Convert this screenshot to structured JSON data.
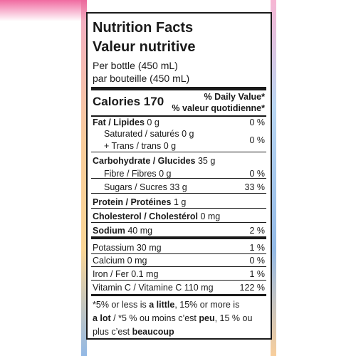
{
  "header": {
    "title_en": "Nutrition Facts",
    "title_fr": "Valeur nutritive",
    "serving_en": "Per bottle (450 mL)",
    "serving_fr": "par bouteille (450 mL)"
  },
  "calories": {
    "label": "Calories 170",
    "dv_en": "% Daily Value*",
    "dv_fr": "% valeur quotidienne*"
  },
  "rows": [
    {
      "name": "Fat / Lipides",
      "amount": "0 g",
      "dv": "0 %"
    },
    {
      "name": "Saturated / saturés",
      "amount": "0 g"
    },
    {
      "name": "+ Trans / trans",
      "amount": "0 g",
      "dv": "0 %"
    },
    {
      "name": "Carbohydrate / Glucides",
      "amount": "35 g"
    },
    {
      "name": "Fibre / Fibres",
      "amount": "0 g",
      "dv": "0 %"
    },
    {
      "name": "Sugars / Sucres",
      "amount": "33 g",
      "dv": "33 %"
    },
    {
      "name": "Protein / Protéines",
      "amount": "1 g"
    },
    {
      "name": "Cholesterol / Cholestérol",
      "amount": "0 mg"
    },
    {
      "name": "Sodium",
      "amount": "40 mg",
      "dv": "2 %"
    },
    {
      "name": "Potassium",
      "amount": "30 mg",
      "dv": "1 %"
    },
    {
      "name": "Calcium",
      "amount": "0 mg",
      "dv": "0 %"
    },
    {
      "name": "Iron / Fer",
      "amount": "0.1 mg",
      "dv": "1 %"
    },
    {
      "name": "Vitamin C / Vitamine C",
      "amount": "110 mg",
      "dv": "122 %"
    }
  ],
  "footnote": [
    [
      {
        "text": "*5% or less is "
      },
      {
        "text": "a little",
        "bold": true
      },
      {
        "text": ", 15% or more is"
      }
    ],
    [
      {
        "text": "a lot",
        "bold": true
      },
      {
        "text": " / *5 % ou moins c’est "
      },
      {
        "text": "peu",
        "bold": true
      },
      {
        "text": ", 15 % ou"
      }
    ],
    [
      {
        "text": "plus c’est "
      },
      {
        "text": "beaucoup",
        "bold": true
      }
    ]
  ]
}
